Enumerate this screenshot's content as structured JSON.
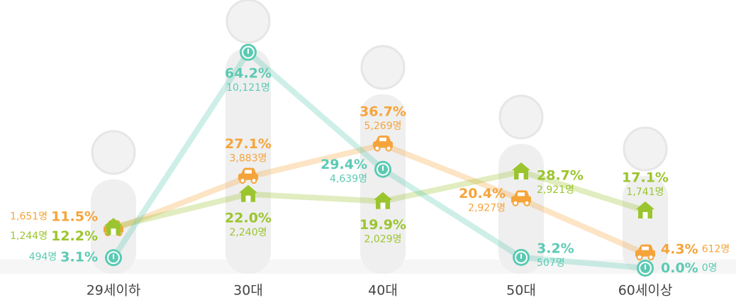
{
  "chart_data": {
    "type": "line",
    "categories": [
      "29세이하",
      "30대",
      "40대",
      "50대",
      "60세이상"
    ],
    "ylim": [
      0,
      65
    ],
    "series": [
      {
        "color": "#f5a43a",
        "values": [
          11.5,
          27.1,
          36.7,
          20.4,
          4.3
        ],
        "value_labels": [
          "11.5%",
          "27.1%",
          "36.7%",
          "20.4%",
          "4.3%"
        ],
        "count_labels": [
          "1,651명",
          "3,883명",
          "5,269명",
          "2,927명",
          "612명"
        ]
      },
      {
        "color": "#9bc52e",
        "values": [
          12.2,
          22.0,
          19.9,
          28.7,
          17.1
        ],
        "value_labels": [
          "12.2%",
          "22.0%",
          "19.9%",
          "28.7%",
          "17.1%"
        ],
        "count_labels": [
          "1,244명",
          "2,240명",
          "2,029명",
          "2,921명",
          "1,741명"
        ]
      },
      {
        "color": "#5ccab3",
        "values": [
          3.1,
          64.2,
          29.4,
          3.2,
          0.0
        ],
        "value_labels": [
          "3.1%",
          "64.2%",
          "29.4%",
          "3.2%",
          "0.0%"
        ],
        "count_labels": [
          "494명",
          "10,121명",
          "4,639명",
          "507명",
          "0명"
        ]
      }
    ]
  }
}
